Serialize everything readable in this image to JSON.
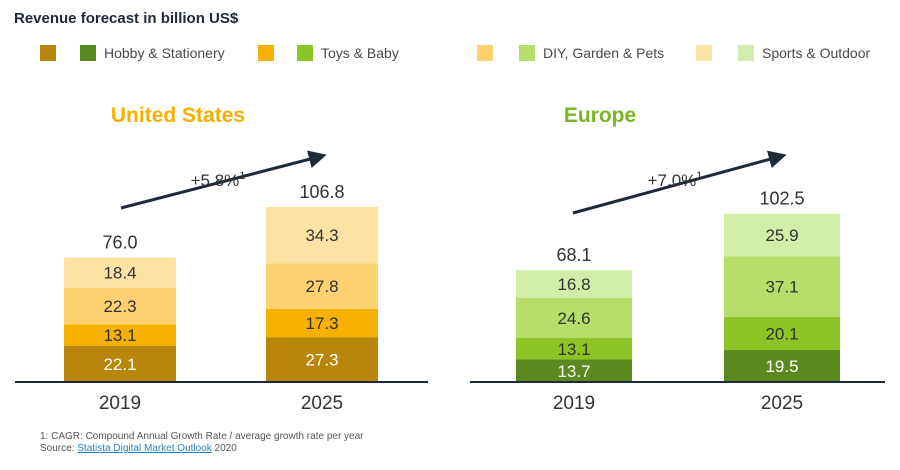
{
  "title": "Revenue forecast in billion US$",
  "legend": [
    {
      "label": "",
      "color": "#b8860b"
    },
    {
      "label": "Hobby & Stationery",
      "color": "#5a8a1e"
    },
    {
      "label": "",
      "color": "#f5b000"
    },
    {
      "label": "Toys & Baby",
      "color": "#8cc425"
    },
    {
      "label": "",
      "color": "#fdd070"
    },
    {
      "label": "DIY, Garden & Pets",
      "color": "#b6de6b"
    },
    {
      "label": "",
      "color": "#fde3a3"
    },
    {
      "label": "Sports & Outdoor",
      "color": "#d2ecaa"
    }
  ],
  "chart_data": [
    {
      "type": "bar",
      "stacked": true,
      "title": "United States",
      "title_color": "#f5b000",
      "categories": [
        "2019",
        "2025"
      ],
      "series": [
        {
          "values": [
            22.1,
            27.3
          ],
          "color": "#b8860b"
        },
        {
          "values": [
            13.1,
            17.3
          ],
          "color": "#f5b000"
        },
        {
          "values": [
            22.3,
            27.8
          ],
          "color": "#fdd070"
        },
        {
          "values": [
            18.4,
            34.3
          ],
          "color": "#fde3a3"
        }
      ],
      "totals": [
        76.0,
        106.8
      ],
      "total_labels": [
        "76.0",
        "106.8"
      ],
      "value_labels": [
        [
          "22.1",
          "27.3"
        ],
        [
          "13.1",
          "17.3"
        ],
        [
          "22.3",
          "27.8"
        ],
        [
          "18.4",
          "34.3"
        ]
      ],
      "growth_label": "+5.8%",
      "growth_footnote_mark": "1",
      "ylim": [
        0,
        110
      ]
    },
    {
      "type": "bar",
      "stacked": true,
      "title": "Europe",
      "title_color": "#7ab62a",
      "categories": [
        "2019",
        "2025"
      ],
      "series": [
        {
          "values": [
            13.7,
            19.5
          ],
          "color": "#5a8a1e"
        },
        {
          "values": [
            13.1,
            20.1
          ],
          "color": "#8cc425"
        },
        {
          "values": [
            24.6,
            37.1
          ],
          "color": "#b6de6b"
        },
        {
          "values": [
            16.8,
            25.9
          ],
          "color": "#d2ecaa"
        }
      ],
      "totals": [
        68.1,
        102.5
      ],
      "total_labels": [
        "68.1",
        "102.5"
      ],
      "value_labels": [
        [
          "13.7",
          "19.5"
        ],
        [
          "13.1",
          "20.1"
        ],
        [
          "24.6",
          "37.1"
        ],
        [
          "16.8",
          "25.9"
        ]
      ],
      "growth_label": "+7.0%",
      "growth_footnote_mark": "1",
      "ylim": [
        0,
        110
      ]
    }
  ],
  "footnote": {
    "line1": "1: CAGR: Compound Annual Growth Rate / average growth rate per year",
    "source_prefix": "Source: ",
    "source_link": "Statista Digital Market Outlook",
    "source_suffix": " 2020"
  },
  "colors": {
    "axis": "#1d2a3a",
    "arrow": "#1d2a3a",
    "label_text": "#333333"
  }
}
